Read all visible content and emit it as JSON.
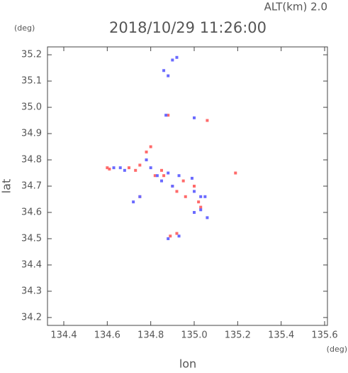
{
  "chart_data": {
    "type": "scatter",
    "title": "2018/10/29 11:26:00",
    "annotation": "ALT(km) 2.0",
    "y_unit": "(deg)",
    "x_unit": "(deg)",
    "x_label": "lon",
    "y_label": "lat",
    "xlim": [
      134.325,
      135.613
    ],
    "ylim": [
      34.17,
      35.23
    ],
    "xticks": [
      134.4,
      134.6,
      134.8,
      {
        "value": 135,
        "label": "135.0"
      },
      135.2,
      135.4,
      135.6
    ],
    "yticks": [
      34.2,
      34.3,
      34.4,
      34.5,
      34.6,
      34.7,
      34.8,
      34.9,
      {
        "value": 35,
        "label": "35.0"
      },
      35.1,
      35.2
    ],
    "series": [
      {
        "color": "#ff6a6a",
        "x": [
          134.6,
          134.61,
          134.7,
          134.73,
          134.75,
          134.78,
          134.8,
          134.78,
          134.86,
          134.9,
          134.92,
          134.95,
          135.0,
          135.02,
          135.03,
          135.06,
          134.88,
          134.92,
          134.89,
          135.19,
          134.75,
          134.96,
          134.85,
          134.82
        ],
        "values": [
          34.77,
          34.765,
          34.77,
          34.76,
          34.78,
          34.83,
          34.85,
          34.8,
          34.74,
          34.7,
          34.68,
          34.72,
          34.7,
          34.64,
          34.62,
          34.95,
          34.97,
          34.52,
          34.51,
          34.75,
          34.66,
          34.66,
          34.76,
          34.74
        ]
      },
      {
        "color": "#6a6aff",
        "x": [
          134.63,
          134.66,
          134.68,
          134.72,
          134.75,
          134.78,
          134.8,
          134.83,
          134.85,
          134.88,
          134.9,
          134.93,
          134.99,
          135.0,
          135.03,
          135.05,
          135.0,
          135.06,
          135.0,
          134.87,
          134.86,
          134.88,
          134.9,
          134.92,
          134.88,
          134.93,
          135.03
        ],
        "values": [
          34.77,
          34.77,
          34.76,
          34.64,
          34.66,
          34.8,
          34.77,
          34.74,
          34.72,
          34.75,
          34.7,
          34.74,
          34.73,
          34.68,
          34.66,
          34.66,
          34.6,
          34.58,
          34.96,
          34.97,
          35.14,
          35.12,
          35.18,
          35.19,
          34.5,
          34.51,
          34.61
        ]
      }
    ]
  }
}
